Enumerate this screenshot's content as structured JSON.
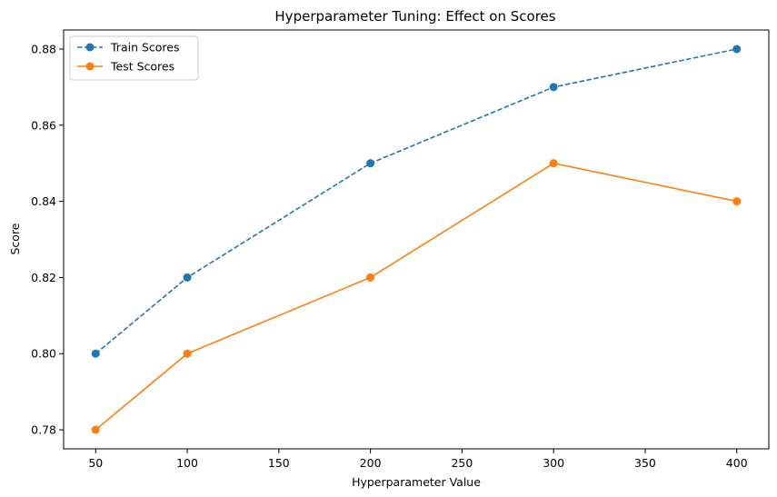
{
  "chart_data": {
    "type": "line",
    "title": "Hyperparameter Tuning: Effect on Scores",
    "xlabel": "Hyperparameter Value",
    "ylabel": "Score",
    "x": [
      50,
      100,
      200,
      300,
      400
    ],
    "xlim": [
      32.5,
      417.5
    ],
    "ylim": [
      0.775,
      0.885
    ],
    "xticks": [
      50,
      100,
      150,
      200,
      250,
      300,
      350,
      400
    ],
    "yticks": [
      0.78,
      0.8,
      0.82,
      0.84,
      0.86,
      0.88
    ],
    "ytick_labels": [
      "0.78",
      "0.80",
      "0.82",
      "0.84",
      "0.86",
      "0.88"
    ],
    "grid": false,
    "legend_position": "upper-left",
    "series": [
      {
        "name": "Train Scores",
        "values": [
          0.8,
          0.82,
          0.85,
          0.87,
          0.88
        ],
        "color": "#1f77b4",
        "linestyle": "dashed",
        "marker": "circle"
      },
      {
        "name": "Test Scores",
        "values": [
          0.78,
          0.8,
          0.82,
          0.85,
          0.84
        ],
        "color": "#ff7f0e",
        "linestyle": "solid",
        "marker": "circle"
      }
    ]
  }
}
